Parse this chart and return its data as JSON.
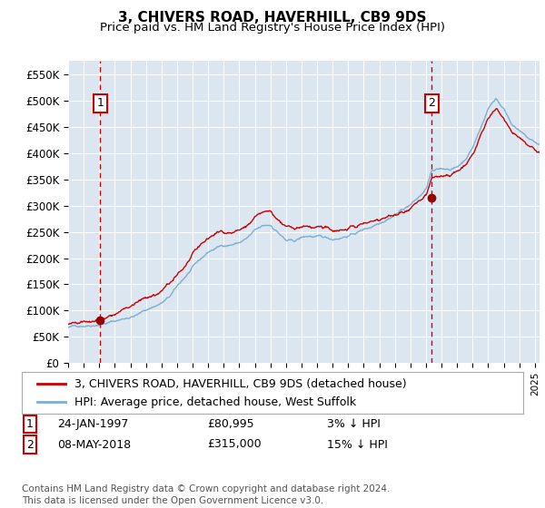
{
  "title": "3, CHIVERS ROAD, HAVERHILL, CB9 9DS",
  "subtitle": "Price paid vs. HM Land Registry's House Price Index (HPI)",
  "ylim": [
    0,
    575000
  ],
  "yticks": [
    0,
    50000,
    100000,
    150000,
    200000,
    250000,
    300000,
    350000,
    400000,
    450000,
    500000,
    550000
  ],
  "ytick_labels": [
    "£0",
    "£50K",
    "£100K",
    "£150K",
    "£200K",
    "£250K",
    "£300K",
    "£350K",
    "£400K",
    "£450K",
    "£500K",
    "£550K"
  ],
  "bg_color": "#dce6f1",
  "hpi_color": "#7bafd4",
  "price_color": "#cc0000",
  "marker_color": "#990000",
  "vline_color": "#cc0000",
  "box_color": "#cc0000",
  "sale1_year": 1997.07,
  "sale1_price": 80995,
  "sale1_label": "1",
  "sale2_year": 2018.37,
  "sale2_price": 315000,
  "sale2_label": "2",
  "legend_line1": "3, CHIVERS ROAD, HAVERHILL, CB9 9DS (detached house)",
  "legend_line2": "HPI: Average price, detached house, West Suffolk",
  "ann1_date": "24-JAN-1997",
  "ann1_price": "£80,995",
  "ann1_hpi": "3% ↓ HPI",
  "ann2_date": "08-MAY-2018",
  "ann2_price": "£315,000",
  "ann2_hpi": "15% ↓ HPI",
  "footer": "Contains HM Land Registry data © Crown copyright and database right 2024.\nThis data is licensed under the Open Government Licence v3.0.",
  "title_fontsize": 11,
  "subtitle_fontsize": 9.5,
  "tick_fontsize": 8.5,
  "ann_fontsize": 9,
  "footer_fontsize": 7.5,
  "xlim_start": 1995,
  "xlim_end": 2025.3
}
